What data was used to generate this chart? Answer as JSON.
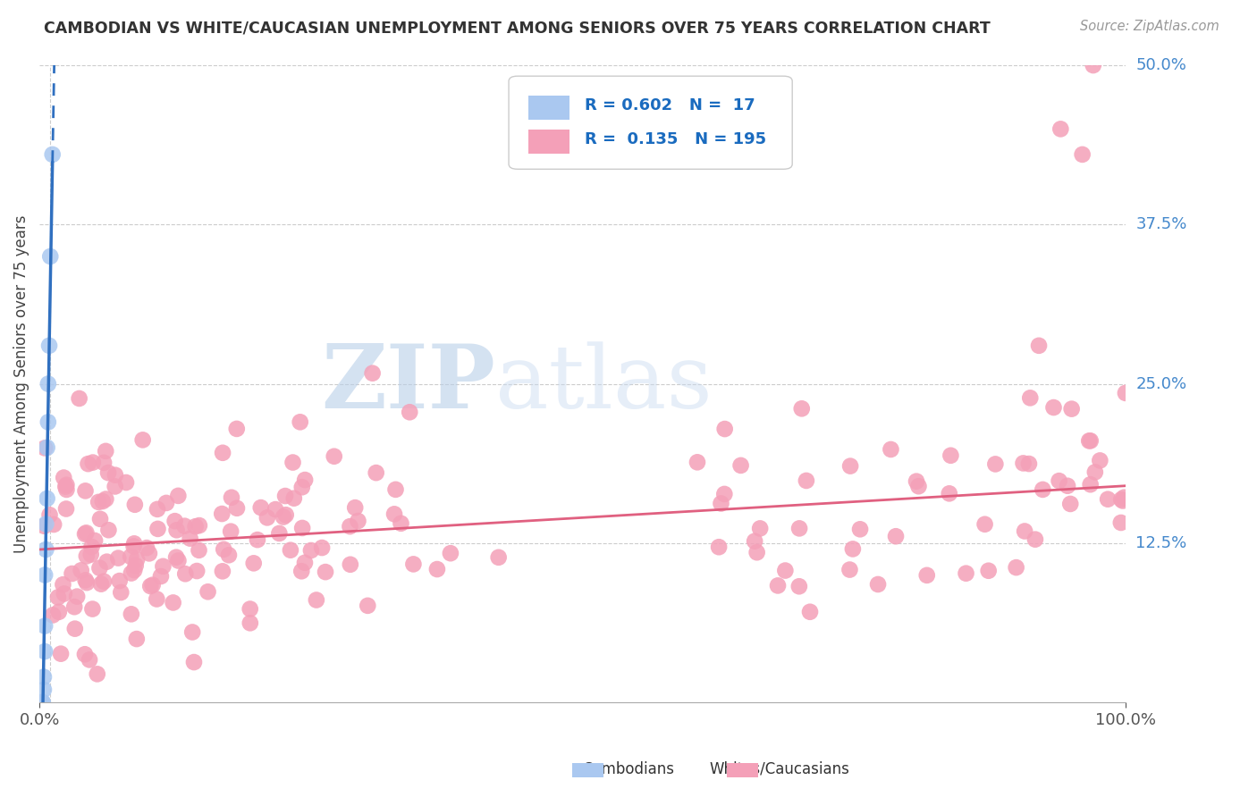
{
  "title": "CAMBODIAN VS WHITE/CAUCASIAN UNEMPLOYMENT AMONG SENIORS OVER 75 YEARS CORRELATION CHART",
  "source": "Source: ZipAtlas.com",
  "ylabel": "Unemployment Among Seniors over 75 years",
  "xlim": [
    0,
    1.0
  ],
  "ylim": [
    0,
    0.5
  ],
  "xtick_positions": [
    0.0,
    1.0
  ],
  "xtick_labels": [
    "0.0%",
    "100.0%"
  ],
  "ytick_labels": [
    "12.5%",
    "25.0%",
    "37.5%",
    "50.0%"
  ],
  "yticks": [
    0.125,
    0.25,
    0.375,
    0.5
  ],
  "legend_r_cambodian": "0.602",
  "legend_n_cambodian": "17",
  "legend_r_white": "0.135",
  "legend_n_white": "195",
  "cambodian_color": "#aac8f0",
  "white_color": "#f4a0b8",
  "cambodian_line_color": "#3070c0",
  "white_line_color": "#e06080",
  "background_color": "#ffffff",
  "grid_color": "#cccccc",
  "watermark_zip": "ZIP",
  "watermark_atlas": "atlas",
  "cam_seed": 42,
  "white_seed": 99
}
